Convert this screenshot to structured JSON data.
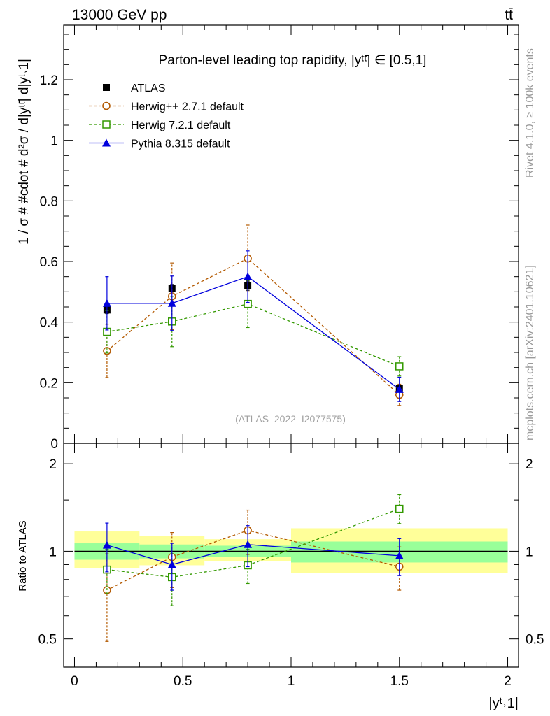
{
  "header": {
    "energy_label": "13000 GeV pp",
    "process_label": "tt̄"
  },
  "side_labels": {
    "rivet": "Rivet 4.1.0, ≥ 100k events",
    "source": "mcplots.cern.ch [arXiv:2401.10621]"
  },
  "chart_data": [
    {
      "type": "line",
      "panel": "main",
      "title": "Parton-level leading top rapidity, |yᵗᵗ̄| ∈ [0.5,1]",
      "xlabel": "|yᵗ˒1|",
      "ylabel": "1 / σ # #cdot # d²σ / d|yᵗᵗ̄| d|yᵗ˒1|",
      "watermark": "(ATLAS_2022_I2077575)",
      "xlim": [
        -0.05,
        2.05
      ],
      "ylim": [
        0.0,
        1.38
      ],
      "x_ticks": [
        0,
        0.5,
        1,
        1.5,
        2
      ],
      "y_ticks": [
        0,
        0.2,
        0.4,
        0.6,
        0.8,
        1,
        1.2
      ],
      "y_tick_labels": [
        "0",
        "0.2",
        "0.4",
        "0.6",
        "0.8",
        "1",
        "1.2"
      ],
      "legend_position": "top-left",
      "series": [
        {
          "name": "ATLAS",
          "color": "#000000",
          "marker": "filled-square",
          "line": "none",
          "x": [
            0.15,
            0.45,
            0.8,
            1.5
          ],
          "y": [
            0.44,
            0.512,
            0.52,
            0.182
          ],
          "err": [
            0.012,
            0.012,
            0.015,
            0.01
          ]
        },
        {
          "name": "Herwig++ 2.7.1 default",
          "color": "#b35900",
          "marker": "open-circle",
          "line": "dashed",
          "x": [
            0.15,
            0.45,
            0.8,
            1.5
          ],
          "y": [
            0.305,
            0.485,
            0.61,
            0.16
          ],
          "err": [
            0.088,
            0.11,
            0.11,
            0.035
          ]
        },
        {
          "name": "Herwig 7.2.1 default",
          "color": "#339900",
          "marker": "open-square",
          "line": "dashed",
          "x": [
            0.15,
            0.45,
            0.8,
            1.5
          ],
          "y": [
            0.368,
            0.402,
            0.46,
            0.254
          ],
          "err": [
            0.07,
            0.083,
            0.078,
            0.032
          ]
        },
        {
          "name": "Pythia 8.315 default",
          "color": "#0000dd",
          "marker": "filled-triangle",
          "line": "solid",
          "step": [
            0.0,
            0.3
          ],
          "x": [
            0.15,
            0.45,
            0.8,
            1.5
          ],
          "y": [
            0.462,
            0.462,
            0.55,
            0.178
          ],
          "err": [
            0.088,
            0.09,
            0.085,
            0.04
          ]
        }
      ]
    },
    {
      "type": "line",
      "panel": "ratio",
      "ylabel": "Ratio to ATLAS",
      "xlim": [
        -0.05,
        2.05
      ],
      "ylim": [
        0.4,
        2.35
      ],
      "y_scale": "log",
      "y_ticks": [
        0.5,
        1,
        2
      ],
      "y_tick_labels": [
        "0.5",
        "1",
        "2"
      ],
      "x_ticks": [
        0,
        0.5,
        1,
        1.5,
        2
      ],
      "x_tick_labels": [
        "0",
        "0.5",
        "1",
        "1.5",
        "2"
      ],
      "reference_bands": [
        {
          "x_range": [
            0.0,
            0.3
          ],
          "inner": [
            0.935,
            1.065
          ],
          "outer": [
            0.875,
            1.17
          ]
        },
        {
          "x_range": [
            0.3,
            0.6
          ],
          "inner": [
            0.945,
            1.055
          ],
          "outer": [
            0.895,
            1.13
          ]
        },
        {
          "x_range": [
            0.6,
            1.0
          ],
          "inner": [
            0.955,
            1.045
          ],
          "outer": [
            0.925,
            1.1
          ]
        },
        {
          "x_range": [
            1.0,
            2.0
          ],
          "inner": [
            0.915,
            1.08
          ],
          "outer": [
            0.84,
            1.2
          ]
        }
      ],
      "band_colors": {
        "inner": "#99ff99",
        "outer": "#ffff99"
      },
      "series": [
        {
          "name": "Herwig++ 2.7.1 default",
          "color": "#b35900",
          "marker": "open-circle",
          "line": "dashed",
          "x": [
            0.15,
            0.45,
            0.8,
            1.5
          ],
          "y": [
            0.735,
            0.955,
            1.18,
            0.885
          ],
          "err_low": [
            0.245,
            0.205,
            0.205,
            0.15
          ],
          "err_high": [
            0.245,
            0.205,
            0.205,
            0.15
          ]
        },
        {
          "name": "Herwig 7.2.1 default",
          "color": "#339900",
          "marker": "open-square",
          "line": "dashed",
          "x": [
            0.15,
            0.45,
            0.8,
            1.5
          ],
          "y": [
            0.865,
            0.815,
            0.895,
            1.4
          ],
          "err_low": [
            0.15,
            0.165,
            0.12,
            0.155
          ],
          "err_high": [
            0.15,
            0.165,
            0.12,
            0.165
          ]
        },
        {
          "name": "Pythia 8.315 default",
          "color": "#0000dd",
          "marker": "filled-triangle",
          "line": "solid",
          "x": [
            0.15,
            0.45,
            0.8,
            1.5
          ],
          "y": [
            1.05,
            0.9,
            1.055,
            0.965
          ],
          "err_low": [
            0.2,
            0.165,
            0.17,
            0.14
          ],
          "err_high": [
            0.2,
            0.165,
            0.17,
            0.14
          ]
        }
      ]
    }
  ]
}
